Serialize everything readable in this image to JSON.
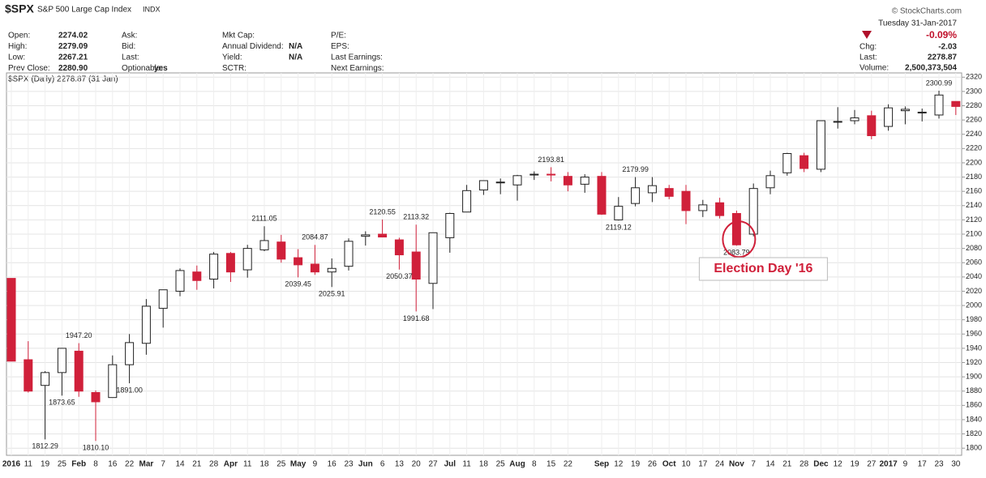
{
  "header": {
    "symbol": "$SPX",
    "name": "S&P 500 Large Cap Index",
    "exchange": "INDX",
    "source": "© StockCharts.com",
    "date": "Tuesday 31-Jan-2017",
    "change_pct": "-0.09%",
    "fields": [
      [
        [
          "Open:",
          "2274.02"
        ],
        [
          "High:",
          "2279.09"
        ],
        [
          "Low:",
          "2267.21"
        ],
        [
          "Prev Close:",
          "2280.90"
        ]
      ],
      [
        [
          "Ask:",
          ""
        ],
        [
          "Bid:",
          ""
        ],
        [
          "Last:",
          ""
        ],
        [
          "Optionable:",
          "yes"
        ]
      ],
      [
        [
          "Mkt Cap:",
          ""
        ],
        [
          "Annual Dividend:",
          "N/A"
        ],
        [
          "Yield:",
          "N/A"
        ],
        [
          "SCTR:",
          ""
        ]
      ],
      [
        [
          "P/E:",
          ""
        ],
        [
          "EPS:",
          ""
        ],
        [
          "Last Earnings:",
          ""
        ],
        [
          "Next Earnings:",
          ""
        ]
      ],
      [
        [
          "Chg:",
          "-2.03"
        ],
        [
          "Last:",
          "2278.87"
        ],
        [
          "Volume:",
          "2,500,373,504"
        ]
      ]
    ]
  },
  "chart_data": {
    "type": "candlestick",
    "legend_text": "$SPX (Daily) 2278.87 (31 Jan)",
    "x": [
      "2016",
      "11",
      "19",
      "25",
      "Feb",
      "8",
      "16",
      "22",
      "Mar",
      "7",
      "14",
      "21",
      "28",
      "Apr",
      "11",
      "18",
      "25",
      "May",
      "9",
      "16",
      "23",
      "Jun",
      "6",
      "13",
      "20",
      "27",
      "Jul",
      "11",
      "18",
      "25",
      "Aug",
      "8",
      "15",
      "22",
      null,
      "Sep",
      "12",
      "19",
      "26",
      "Oct",
      "10",
      "17",
      "24",
      "Nov",
      "7",
      "14",
      "21",
      "28",
      "Dec",
      "12",
      "19",
      "27",
      "2017",
      "9",
      "17",
      "23",
      "30"
    ],
    "open": [
      2038,
      1924,
      1888,
      1906,
      1936,
      1878,
      1871,
      1917,
      1947,
      1996,
      2020,
      2047,
      2037,
      2073,
      2050,
      2078,
      2089,
      2067,
      2058,
      2047,
      2055,
      2097,
      2100,
      2092,
      2075,
      2031,
      2095,
      2131,
      2162,
      2173,
      2169,
      2183,
      2184,
      2181,
      2170,
      2181,
      2120,
      2143,
      2158,
      2164,
      2160,
      2133,
      2144,
      2129,
      2100,
      2165,
      2186,
      2210,
      2191,
      2258,
      2259,
      2266,
      2251,
      2273,
      2270,
      2267,
      2286
    ],
    "high": [
      2038,
      1950,
      1908,
      1940,
      1947.2,
      1881,
      1930,
      1960,
      2009,
      2022,
      2052,
      2056,
      2075,
      2075,
      2085,
      2111.05,
      2099,
      2079,
      2084.87,
      2066,
      2094,
      2104,
      2120.55,
      2095,
      2113.32,
      2102,
      2130,
      2169,
      2175,
      2178,
      2183,
      2188,
      2193.81,
      2187,
      2184,
      2187,
      2152,
      2179.99,
      2180,
      2169,
      2169,
      2148,
      2151,
      2133,
      2171,
      2189,
      2214,
      2214,
      2259,
      2278,
      2274,
      2273,
      2282,
      2279,
      2276,
      2300.99,
      2286
    ],
    "low": [
      1922,
      1878,
      1812.29,
      1873.65,
      1872,
      1810.1,
      1871,
      1891,
      1931,
      1969,
      2013,
      2022,
      2024,
      2033,
      2039,
      2076,
      2060,
      2039.45,
      2043,
      2025.91,
      2049,
      2084,
      2096,
      2050.37,
      1991.68,
      1995,
      2074,
      2131,
      2155,
      2156,
      2147,
      2176,
      2174,
      2160,
      2158,
      2127,
      2119.12,
      2139,
      2145,
      2149,
      2114,
      2124,
      2122,
      2083.79,
      2097,
      2156,
      2182,
      2187,
      2187,
      2248,
      2254,
      2233,
      2245,
      2254,
      2258,
      2262,
      2267
    ],
    "close": [
      1922,
      1880,
      1906,
      1940,
      1880,
      1865,
      1917,
      1948,
      1999,
      2022,
      2049,
      2035,
      2072,
      2047,
      2080,
      2091,
      2065,
      2057,
      2047,
      2052,
      2090,
      2099,
      2096,
      2071,
      2037,
      2102,
      2129,
      2161,
      2175,
      2173,
      2182,
      2184,
      2183,
      2169,
      2180,
      2128,
      2139,
      2165,
      2168,
      2153,
      2133,
      2141,
      2126,
      2085,
      2164,
      2182,
      2213,
      2192,
      2259,
      2258,
      2263,
      2238,
      2277,
      2275,
      2271,
      2295,
      2279
    ],
    "up_color": "#ffffff",
    "down_color": "#d0203a",
    "outline_color": "#222222",
    "ylim": [
      1790,
      2326
    ],
    "yticks": [
      1800,
      1820,
      1840,
      1860,
      1880,
      1900,
      1920,
      1940,
      1960,
      1980,
      2000,
      2020,
      2040,
      2060,
      2080,
      2100,
      2120,
      2140,
      2160,
      2180,
      2200,
      2220,
      2240,
      2260,
      2280,
      2300,
      2320
    ],
    "grid": true,
    "annotations": [
      {
        "x": 4,
        "value": 1947.2,
        "label": "1947.20"
      },
      {
        "x": 3,
        "value": 1873.65,
        "label": "1873.65"
      },
      {
        "x": 2,
        "value": 1812.29,
        "label": "1812.29"
      },
      {
        "x": 5,
        "value": 1810.1,
        "label": "1810.10"
      },
      {
        "x": 7,
        "value": 1891,
        "label": "1891.00"
      },
      {
        "x": 15,
        "value": 2111.05,
        "label": "2111.05"
      },
      {
        "x": 17,
        "value": 2039.45,
        "label": "2039.45"
      },
      {
        "x": 18,
        "value": 2084.87,
        "label": "2084.87"
      },
      {
        "x": 19,
        "value": 2025.91,
        "label": "2025.91"
      },
      {
        "x": 22,
        "value": 2120.55,
        "label": "2120.55"
      },
      {
        "x": 23,
        "value": 2050.37,
        "label": "2050.37"
      },
      {
        "x": 24,
        "value": 2113.32,
        "label": "2113.32"
      },
      {
        "x": 24,
        "value": 1991.68,
        "label": "1991.68"
      },
      {
        "x": 32,
        "value": 2193.81,
        "label": "2193.81"
      },
      {
        "x": 36,
        "value": 2119.12,
        "label": "2119.12"
      },
      {
        "x": 37,
        "value": 2179.99,
        "label": "2179.99"
      },
      {
        "x": 43,
        "value": 2083.79,
        "label": "2083.79"
      },
      {
        "x": 55,
        "value": 2300.99,
        "label": "2300.99"
      }
    ],
    "callout": {
      "x": 43,
      "text": "Election Day '16"
    }
  }
}
